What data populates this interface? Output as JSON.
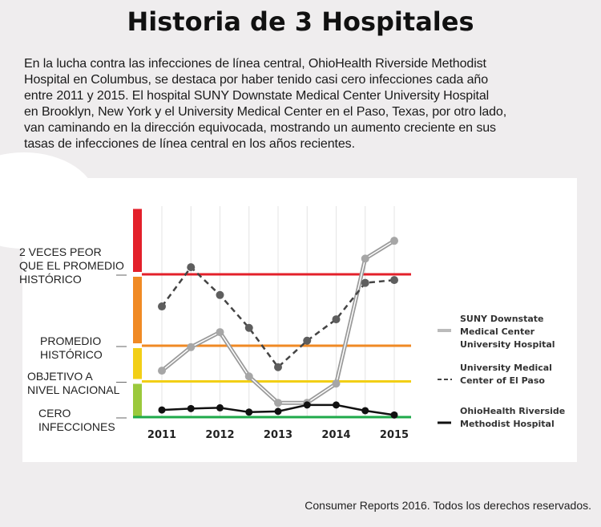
{
  "title": "Historia de 3 Hospitales",
  "intro_lines": [
    "En la lucha contra las infecciones de línea central, OhioHealth Riverside Methodist",
    "Hospital en Columbus, se destaca por haber tenido casi cero infecciones cada año",
    "entre 2011 y 2015. El hospital SUNY Downstate Medical Center University Hospital",
    "en Brooklyn, New York y el University Medical Center en el Paso, Texas, por otro lado,",
    "van caminando en la dirección equivocada, mostrando un aumento creciente en sus",
    "tasas de infecciones de línea central en los años recientes."
  ],
  "credit": "Consumer Reports 2016. Todos los derechos reservados.",
  "chart_data": {
    "type": "line",
    "title": "Historia de 3 Hospitales",
    "xlabel": "",
    "ylabel": "",
    "x": [
      2011,
      2011.5,
      2012,
      2012.5,
      2013,
      2013.5,
      2014,
      2014.5,
      2015
    ],
    "x_ticks": [
      "2011",
      "2012",
      "2013",
      "2014",
      "2015"
    ],
    "ylim": [
      0,
      2.6
    ],
    "levels": [
      {
        "value": 0,
        "label_lines": [
          "CERO",
          "INFECCIONES"
        ],
        "color": "#1faa4a",
        "band": "#9bc93c"
      },
      {
        "value": 0.5,
        "label_lines": [
          "OBJETIVO A",
          "NIVEL NACIONAL"
        ],
        "color": "#f2cf16",
        "band": "#f2cf16"
      },
      {
        "value": 1,
        "label_lines": [
          "PROMEDIO",
          "HISTÓRICO"
        ],
        "color": "#f08a24",
        "band": "#f08a24"
      },
      {
        "value": 2,
        "label_lines": [
          "2 VECES PEOR",
          "QUE EL PROMEDIO",
          "HISTÓRICO"
        ],
        "color": "#e3202a",
        "band": "#e3202a"
      }
    ],
    "series": [
      {
        "name": "SUNY Downstate Medical Center University Hospital",
        "legend_lines": [
          "SUNY Downstate",
          "Medical Center",
          "University Hospital"
        ],
        "style": "double-gray",
        "color": "#9a9a9a",
        "values": [
          0.65,
          0.98,
          1.19,
          0.57,
          0.2,
          0.2,
          0.47,
          2.22,
          2.47
        ]
      },
      {
        "name": "University Medical Center of El Paso",
        "legend_lines": [
          "University Medical",
          "Center of El Paso"
        ],
        "style": "dashed",
        "color": "#555555",
        "values": [
          1.55,
          2.1,
          1.71,
          1.25,
          0.7,
          1.07,
          1.37,
          1.88,
          1.92
        ]
      },
      {
        "name": "OhioHealth Riverside Methodist Hospital",
        "legend_lines": [
          "OhioHealth Riverside",
          "Methodist Hospital"
        ],
        "style": "solid",
        "color": "#111111",
        "values": [
          0.1,
          0.12,
          0.13,
          0.07,
          0.08,
          0.17,
          0.17,
          0.09,
          0.03
        ]
      }
    ],
    "legend": "right",
    "grid": true
  }
}
